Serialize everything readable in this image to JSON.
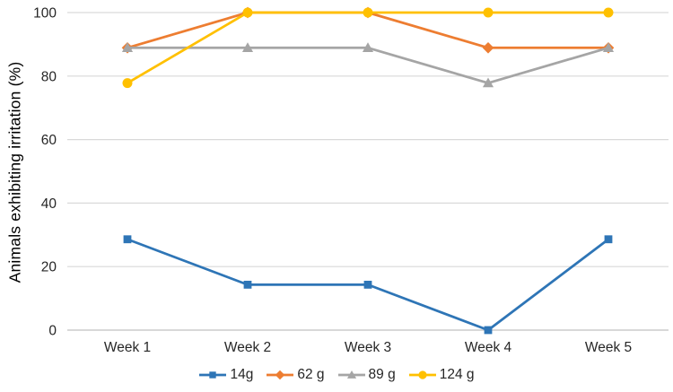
{
  "chart_data": {
    "type": "line",
    "title": "",
    "xlabel": "",
    "ylabel": "Animals exhibiting irritation (%)",
    "ylim": [
      0,
      100
    ],
    "yticks": [
      0,
      20,
      40,
      60,
      80,
      100
    ],
    "grid": true,
    "legend_position": "bottom",
    "categories": [
      "Week 1",
      "Week 2",
      "Week 3",
      "Week 4",
      "Week 5"
    ],
    "series": [
      {
        "name": "14g",
        "color": "#2E75B6",
        "marker": "square",
        "values": [
          28.6,
          14.3,
          14.3,
          0,
          28.6
        ]
      },
      {
        "name": "62 g",
        "color": "#ED7D31",
        "marker": "diamond",
        "values": [
          88.9,
          100,
          100,
          88.9,
          88.9
        ]
      },
      {
        "name": "89 g",
        "color": "#A5A5A5",
        "marker": "triangle",
        "values": [
          88.9,
          88.9,
          88.9,
          77.8,
          88.9
        ]
      },
      {
        "name": "124 g",
        "color": "#FFC000",
        "marker": "circle",
        "values": [
          77.8,
          100,
          100,
          100,
          100
        ]
      }
    ],
    "colors": {
      "gridline": "#d9d9d9",
      "axis_line": "#c0c0c0",
      "tick_text": "#262626"
    }
  }
}
